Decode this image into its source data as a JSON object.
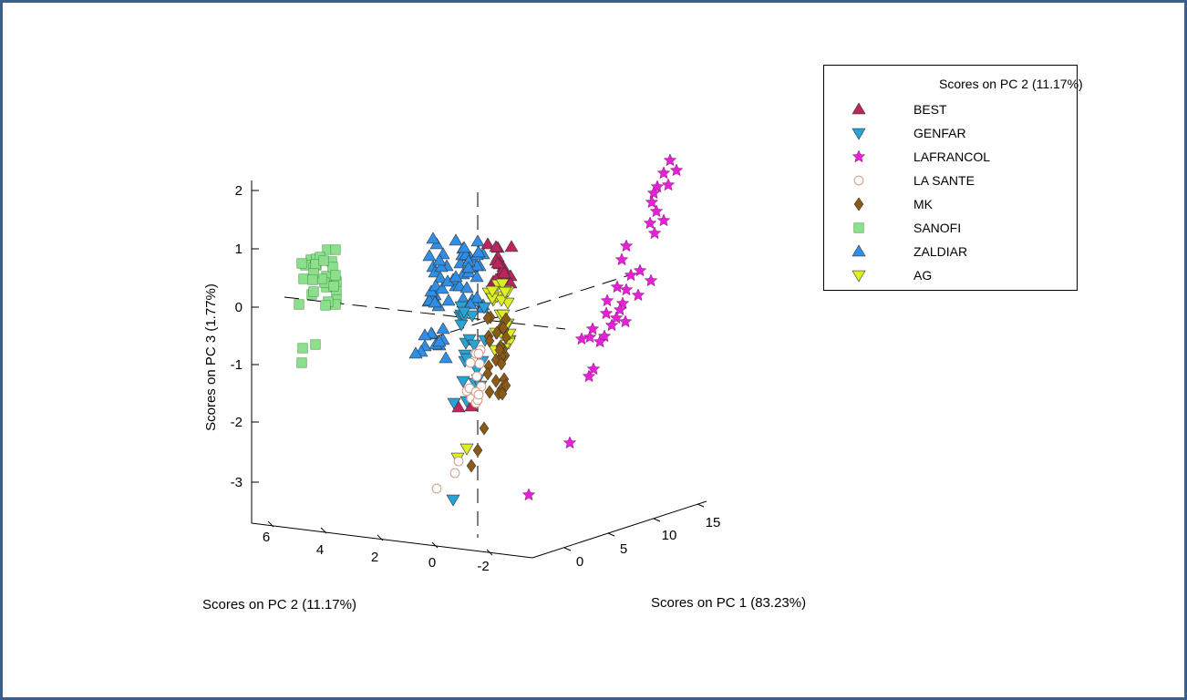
{
  "chart_data": {
    "type": "scatter",
    "projection": "3d",
    "title": "",
    "xlabel": "Scores on PC 1 (83.23%)",
    "ylabel": "Scores on PC 2 (11.17%)",
    "zlabel": "Scores on PC 3 (1.77%)",
    "xticks": [
      "0",
      "5",
      "10",
      "15"
    ],
    "yticks": [
      "6",
      "4",
      "2",
      "0",
      "-2"
    ],
    "zticks": [
      "2",
      "1",
      "0",
      "-1",
      "-2",
      "-3"
    ],
    "xlim": [
      -3,
      17
    ],
    "ylim": [
      -3,
      7
    ],
    "zlim": [
      -3.8,
      2.3
    ],
    "legend_title": "Scores on PC 2 (11.17%)",
    "legend_position": "top-right",
    "grid": false,
    "series": [
      {
        "name": "BEST",
        "marker": "triangle-up",
        "color": "#c0245e"
      },
      {
        "name": "GENFAR",
        "marker": "triangle-down",
        "color": "#29a3d6"
      },
      {
        "name": "LAFRANCOL",
        "marker": "star",
        "color": "#e81fd8"
      },
      {
        "name": "LA SANTE",
        "marker": "circle",
        "color": "#d49a8a"
      },
      {
        "name": "MK",
        "marker": "diamond",
        "color": "#8b5a14"
      },
      {
        "name": "SANOFI",
        "marker": "square",
        "color": "#8ce08c"
      },
      {
        "name": "ZALDIAR",
        "marker": "triangle-up",
        "color": "#2f8fe8"
      },
      {
        "name": "AG",
        "marker": "triangle-down",
        "color": "#ddee22"
      }
    ]
  }
}
